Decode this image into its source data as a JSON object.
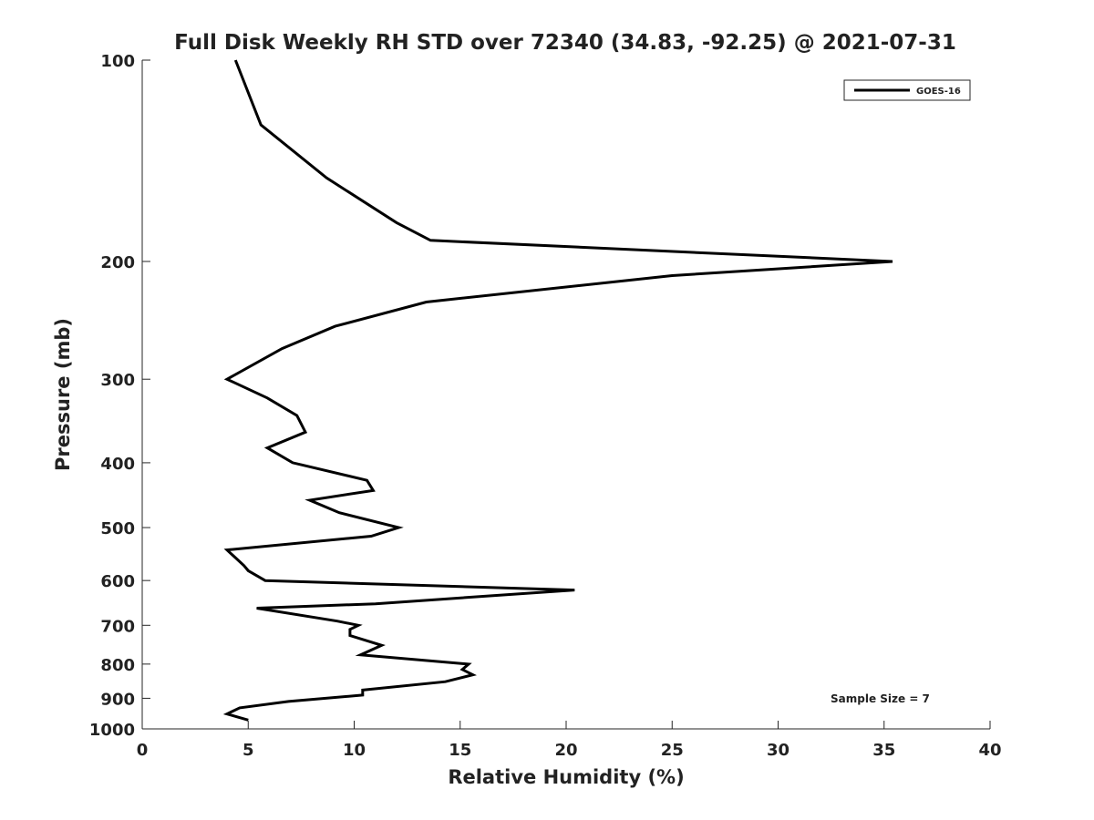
{
  "chart_data": {
    "type": "line",
    "title": "Full Disk Weekly RH STD over 72340 (34.83, -92.25) @ 2021-07-31",
    "xlabel": "Relative Humidity (%)",
    "ylabel": "Pressure (mb)",
    "xlim": [
      0,
      40
    ],
    "ylim": [
      100,
      1000
    ],
    "y_scale": "log",
    "y_inverted": true,
    "x_ticks": [
      0,
      5,
      10,
      15,
      20,
      25,
      30,
      35,
      40
    ],
    "y_ticks": [
      100,
      200,
      300,
      400,
      500,
      600,
      700,
      800,
      900,
      1000
    ],
    "grid": false,
    "legend_position": "top-right",
    "annotation": "Sample Size = 7",
    "series": [
      {
        "name": "GOES-16",
        "color": "#000000",
        "points": [
          [
            4.4,
            100
          ],
          [
            5.6,
            125
          ],
          [
            8.7,
            150
          ],
          [
            12.0,
            175
          ],
          [
            13.6,
            186
          ],
          [
            35.4,
            200
          ],
          [
            25.0,
            210
          ],
          [
            13.4,
            230
          ],
          [
            9.1,
            250
          ],
          [
            6.6,
            270
          ],
          [
            4.0,
            300
          ],
          [
            5.9,
            320
          ],
          [
            7.3,
            340
          ],
          [
            7.7,
            360
          ],
          [
            5.9,
            380
          ],
          [
            7.1,
            400
          ],
          [
            10.6,
            425
          ],
          [
            10.9,
            440
          ],
          [
            7.9,
            455
          ],
          [
            9.3,
            475
          ],
          [
            12.1,
            500
          ],
          [
            10.8,
            515
          ],
          [
            4.0,
            540
          ],
          [
            4.8,
            570
          ],
          [
            5.0,
            580
          ],
          [
            5.8,
            600
          ],
          [
            20.4,
            620
          ],
          [
            11.0,
            650
          ],
          [
            5.4,
            660
          ],
          [
            9.2,
            690
          ],
          [
            10.2,
            700
          ],
          [
            9.8,
            710
          ],
          [
            9.8,
            725
          ],
          [
            11.3,
            750
          ],
          [
            10.3,
            775
          ],
          [
            15.4,
            800
          ],
          [
            15.1,
            815
          ],
          [
            15.6,
            830
          ],
          [
            14.3,
            850
          ],
          [
            10.4,
            875
          ],
          [
            10.4,
            890
          ],
          [
            6.9,
            910
          ],
          [
            4.6,
            930
          ],
          [
            4.0,
            950
          ],
          [
            5.0,
            970
          ]
        ]
      }
    ]
  }
}
